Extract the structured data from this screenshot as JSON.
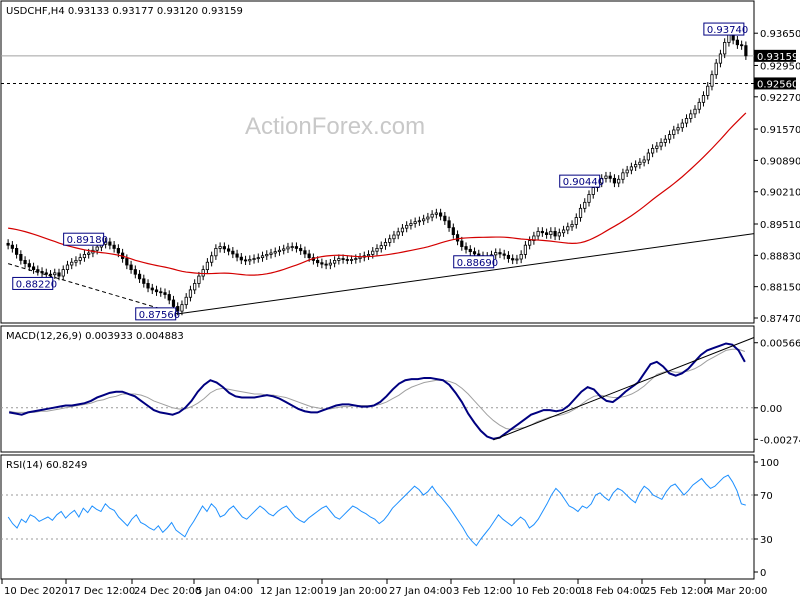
{
  "symbol_header": "USDCHF,H4  0.93133 0.93177 0.93120 0.93159",
  "watermark": "ActionForex.com",
  "macd_header": "MACD(12,26,9) 0.003933 0.004883",
  "rsi_header": "RSI(14) 60.8249",
  "price_tags": {
    "current": "0.93159",
    "level": "0.92560"
  },
  "chart_data": [
    {
      "type": "candlestick",
      "title": "USDCHF,H4",
      "ohlc_last": {
        "open": 0.93133,
        "high": 0.93177,
        "low": 0.9312,
        "close": 0.93159
      },
      "ylim": [
        0.8747,
        0.9398
      ],
      "y_ticks": [
        "0.93650",
        "0.92950",
        "0.92270",
        "0.91570",
        "0.90890",
        "0.90210",
        "0.89510",
        "0.88830",
        "0.88150",
        "0.87470"
      ],
      "x_tick_labels": [
        "10 Dec 2020",
        "17 Dec 12:00",
        "24 Dec 20:00",
        "5 Jan 04:00",
        "12 Jan 12:00",
        "19 Jan 20:00",
        "27 Jan 04:00",
        "3 Feb 12:00",
        "10 Feb 20:00",
        "18 Feb 04:00",
        "25 Feb 12:00",
        "4 Mar 20:00"
      ],
      "close_series": [
        0.8905,
        0.8898,
        0.8885,
        0.8872,
        0.8865,
        0.8858,
        0.8852,
        0.8848,
        0.8845,
        0.8842,
        0.8841,
        0.8845,
        0.8838,
        0.8852,
        0.8862,
        0.8868,
        0.8872,
        0.8878,
        0.8885,
        0.8888,
        0.8894,
        0.8901,
        0.8907,
        0.8912,
        0.8905,
        0.8898,
        0.8888,
        0.8876,
        0.8862,
        0.8852,
        0.8842,
        0.8832,
        0.8822,
        0.8812,
        0.8808,
        0.8804,
        0.8802,
        0.8798,
        0.8786,
        0.8772,
        0.8762,
        0.8776,
        0.8792,
        0.8808,
        0.8822,
        0.8838,
        0.8852,
        0.8868,
        0.8882,
        0.8898,
        0.8902,
        0.8897,
        0.8892,
        0.8886,
        0.8879,
        0.8873,
        0.8871,
        0.8874,
        0.8876,
        0.8878,
        0.8882,
        0.8885,
        0.8888,
        0.8891,
        0.8894,
        0.8897,
        0.8901,
        0.8902,
        0.8898,
        0.8893,
        0.8886,
        0.8878,
        0.8872,
        0.8867,
        0.8864,
        0.8862,
        0.8866,
        0.8872,
        0.8876,
        0.8874,
        0.8873,
        0.8874,
        0.8876,
        0.8879,
        0.8882,
        0.8885,
        0.8892,
        0.8898,
        0.8904,
        0.8911,
        0.8919,
        0.8927,
        0.8934,
        0.8942,
        0.8948,
        0.8952,
        0.8956,
        0.8958,
        0.8962,
        0.8966,
        0.8972,
        0.8975,
        0.8968,
        0.8958,
        0.8943,
        0.8928,
        0.8914,
        0.8902,
        0.8896,
        0.8891,
        0.8886,
        0.8882,
        0.8879,
        0.8881,
        0.8884,
        0.8889,
        0.8886,
        0.8883,
        0.8876,
        0.8873,
        0.8875,
        0.8885,
        0.8905,
        0.8915,
        0.8925,
        0.8935,
        0.8932,
        0.8928,
        0.8935,
        0.8925,
        0.8932,
        0.8938,
        0.8945,
        0.895,
        0.8965,
        0.8985,
        0.8998,
        0.9015,
        0.903,
        0.904,
        0.905,
        0.9055,
        0.905,
        0.904,
        0.9048,
        0.9062,
        0.9068,
        0.9075,
        0.908,
        0.9085,
        0.909,
        0.9105,
        0.9115,
        0.912,
        0.9128,
        0.9135,
        0.9145,
        0.9155,
        0.916,
        0.917,
        0.918,
        0.919,
        0.92,
        0.9215,
        0.923,
        0.925,
        0.9275,
        0.93,
        0.932,
        0.9345,
        0.9362,
        0.935,
        0.934,
        0.9338,
        0.9316
      ],
      "open_series_offset": [
        0.0004,
        -0.0003
      ],
      "ma_line": {
        "color": "#d40000",
        "from": 0.8942,
        "to": 0.9225
      },
      "annotations": [
        {
          "label": "0.89180",
          "x_index": 23
        },
        {
          "label": "0.88220",
          "x_index": 11
        },
        {
          "label": "0.87560",
          "x_index": 40
        },
        {
          "label": "0.90440",
          "x_index": 140
        },
        {
          "label": "0.88690",
          "x_index": 115
        },
        {
          "label": "0.93740",
          "x_index": 175
        }
      ],
      "horizontal_levels": [
        {
          "value": 0.93159,
          "style": "solid",
          "color": "#a0a0a0"
        },
        {
          "value": 0.9256,
          "style": "dashed",
          "color": "#000000"
        }
      ],
      "trendlines": [
        {
          "from_index": 40,
          "from_value": 0.8756,
          "to_index": 181,
          "to_value": 0.893,
          "style": "solid"
        },
        {
          "from_index": 0,
          "from_value": 0.8865,
          "to_index": 40,
          "to_value": 0.8756,
          "style": "dashed"
        }
      ]
    },
    {
      "type": "line",
      "title": "MACD(12,26,9)",
      "ylim": [
        -0.0035,
        0.0066
      ],
      "y_ticks": [
        "0.005666",
        "0.00",
        "-0.002741"
      ],
      "series": [
        {
          "name": "MACD",
          "color": "#000080",
          "values": [
            -0.0004,
            -0.0005,
            -0.0006,
            -0.0004,
            -0.0003,
            -0.0002,
            -0.0001,
            -0.0,
            0.0001,
            0.0002,
            0.0002,
            0.0003,
            0.0004,
            0.0006,
            0.0009,
            0.0011,
            0.0013,
            0.0014,
            0.0014,
            0.0012,
            0.001,
            0.0006,
            0.0002,
            -0.0002,
            -0.0004,
            -0.0005,
            -0.0006,
            -0.0004,
            0.0,
            0.0006,
            0.0014,
            0.002,
            0.0024,
            0.0022,
            0.0018,
            0.0013,
            0.001,
            0.0009,
            0.0009,
            0.0009,
            0.001,
            0.0011,
            0.001,
            0.0008,
            0.0005,
            0.0002,
            -0.0001,
            -0.0003,
            -0.0004,
            -0.0004,
            -0.0002,
            0.0,
            0.0002,
            0.0003,
            0.0003,
            0.0002,
            0.0001,
            0.0001,
            0.0002,
            0.0005,
            0.001,
            0.0016,
            0.0021,
            0.0024,
            0.0025,
            0.0025,
            0.0026,
            0.0026,
            0.0025,
            0.0024,
            0.002,
            0.0013,
            0.0005,
            -0.0005,
            -0.0013,
            -0.002,
            -0.0025,
            -0.0027,
            -0.0026,
            -0.0022,
            -0.0018,
            -0.0014,
            -0.001,
            -0.0006,
            -0.0004,
            -0.0002,
            -0.0002,
            -0.0003,
            -0.0002,
            0.0002,
            0.0008,
            0.0014,
            0.0018,
            0.0016,
            0.001,
            0.0006,
            0.0005,
            0.0009,
            0.0014,
            0.0018,
            0.0022,
            0.003,
            0.0038,
            0.004,
            0.0036,
            0.003,
            0.0028,
            0.003,
            0.0034,
            0.004,
            0.0046,
            0.005,
            0.0052,
            0.0054,
            0.0056,
            0.0055,
            0.005,
            0.004
          ]
        },
        {
          "name": "Signal",
          "color": "#a0a0a0",
          "values": [
            -0.0003,
            -0.0004,
            -0.0004,
            -0.0004,
            -0.0004,
            -0.0003,
            -0.0003,
            -0.0002,
            -0.0001,
            0.0,
            0.0001,
            0.0002,
            0.0003,
            0.0004,
            0.0006,
            0.0007,
            0.0009,
            0.001,
            0.0012,
            0.0012,
            0.0012,
            0.0011,
            0.0009,
            0.0006,
            0.0004,
            0.0002,
            0.0,
            -0.0001,
            -0.0001,
            0.0001,
            0.0004,
            0.0008,
            0.0013,
            0.0016,
            0.0017,
            0.0016,
            0.0015,
            0.0014,
            0.0013,
            0.0012,
            0.0012,
            0.0011,
            0.0011,
            0.001,
            0.0009,
            0.0007,
            0.0005,
            0.0003,
            0.0001,
            0.0,
            -0.0001,
            -0.0001,
            0.0,
            0.0001,
            0.0001,
            0.0002,
            0.0002,
            0.0002,
            0.0002,
            0.0003,
            0.0005,
            0.0008,
            0.0011,
            0.0015,
            0.0018,
            0.002,
            0.0022,
            0.0023,
            0.0024,
            0.0024,
            0.0023,
            0.0021,
            0.0017,
            0.0012,
            0.0006,
            0.0,
            -0.0006,
            -0.0011,
            -0.0015,
            -0.0018,
            -0.0019,
            -0.0018,
            -0.0017,
            -0.0015,
            -0.0012,
            -0.001,
            -0.0008,
            -0.0007,
            -0.0006,
            -0.0004,
            -0.0001,
            0.0003,
            0.0007,
            0.001,
            0.0011,
            0.001,
            0.0009,
            0.0009,
            0.001,
            0.0012,
            0.0015,
            0.0019,
            0.0024,
            0.0029,
            0.0031,
            0.0032,
            0.0031,
            0.0031,
            0.0032,
            0.0034,
            0.0037,
            0.0041,
            0.0044,
            0.0047,
            0.005,
            0.0051,
            0.0051,
            0.0049
          ]
        }
      ],
      "trendline": {
        "from_index": 77,
        "from_value": -0.0028,
        "to_index": 120,
        "to_value": 0.0056
      }
    },
    {
      "type": "line",
      "title": "RSI(14)",
      "ylim": [
        0,
        100
      ],
      "y_ticks": [
        "100",
        "70",
        "30",
        "0"
      ],
      "levels": [
        70,
        30
      ],
      "series": [
        {
          "name": "RSI",
          "color": "#1e90ff",
          "values": [
            50,
            44,
            40,
            48,
            45,
            52,
            50,
            46,
            48,
            50,
            47,
            52,
            55,
            49,
            53,
            56,
            50,
            58,
            54,
            60,
            57,
            55,
            62,
            58,
            56,
            50,
            46,
            42,
            48,
            52,
            45,
            43,
            40,
            38,
            42,
            36,
            40,
            45,
            38,
            35,
            32,
            40,
            46,
            53,
            60,
            55,
            62,
            58,
            50,
            52,
            57,
            60,
            55,
            50,
            48,
            52,
            56,
            60,
            57,
            53,
            51,
            55,
            58,
            60,
            55,
            50,
            47,
            45,
            49,
            52,
            55,
            58,
            60,
            55,
            50,
            48,
            52,
            56,
            60,
            58,
            55,
            53,
            50,
            48,
            44,
            47,
            52,
            58,
            62,
            66,
            70,
            74,
            78,
            75,
            70,
            73,
            78,
            72,
            68,
            63,
            58,
            52,
            46,
            40,
            33,
            28,
            24,
            30,
            35,
            40,
            46,
            52,
            48,
            45,
            42,
            46,
            50,
            47,
            40,
            43,
            48,
            55,
            62,
            70,
            76,
            72,
            66,
            60,
            58,
            55,
            60,
            58,
            62,
            70,
            72,
            68,
            65,
            72,
            76,
            74,
            70,
            66,
            63,
            72,
            78,
            75,
            70,
            68,
            66,
            73,
            78,
            80,
            75,
            70,
            74,
            79,
            82,
            85,
            80,
            76,
            78,
            82,
            86,
            88,
            82,
            74,
            62,
            60.8
          ]
        }
      ]
    }
  ]
}
